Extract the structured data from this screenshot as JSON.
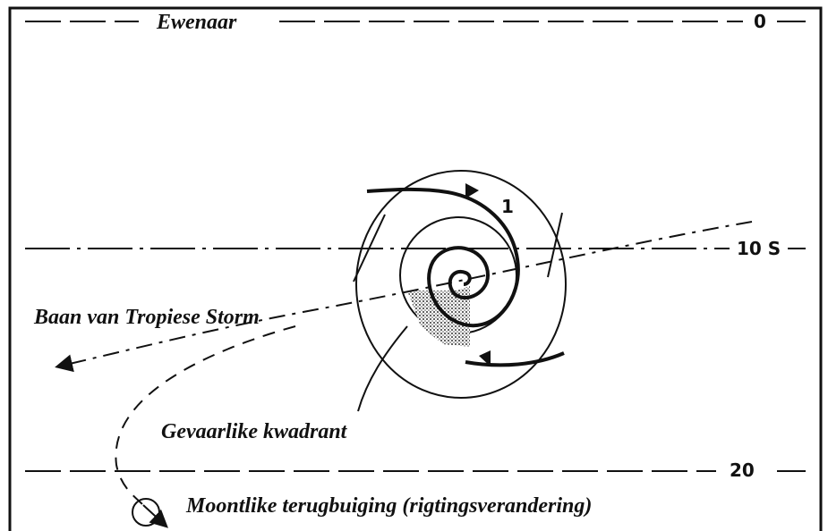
{
  "labels": {
    "equator": "Ewenaar",
    "lat_0": "0",
    "lat_10": "10 S",
    "lat_20": "20",
    "position_1": "1",
    "track": "Baan van Tropiese Storm",
    "quadrant": "Gevaarlike kwadrant",
    "recurve": "Moontlike terugbuiging (rigtingsverandering)"
  }
}
